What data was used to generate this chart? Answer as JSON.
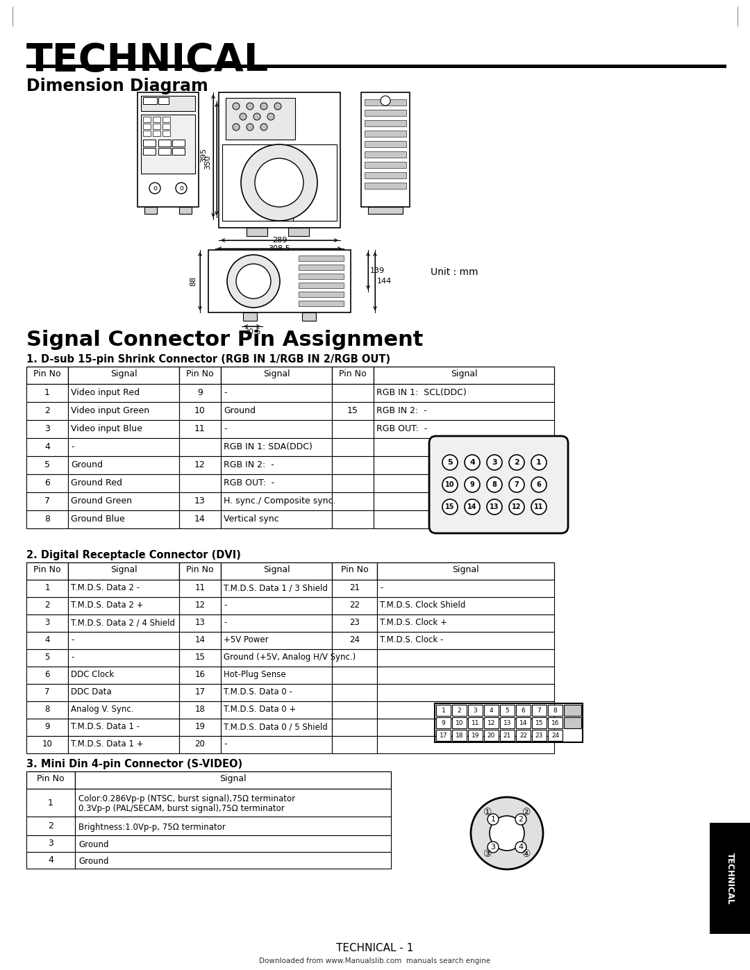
{
  "title": "TECHNICAL",
  "section1": "Dimension Diagram",
  "section2": "Signal Connector Pin Assignment",
  "subsection1": "1. D-sub 15-pin Shrink Connector (RGB IN 1/RGB IN 2/RGB OUT)",
  "subsection2": "2. Digital Receptacle Connector (DVI)",
  "subsection3": "3. Mini Din 4-pin Connector (S-VIDEO)",
  "unit_label": "Unit : mm",
  "footer": "TECHNICAL - 1",
  "footer2": "Downloaded from www.Manualslib.com  manuals search engine",
  "rgb_table_headers": [
    "Pin No",
    "Signal",
    "Pin No",
    "Signal",
    "Pin No",
    "Signal"
  ],
  "rgb_table_rows": [
    [
      "1",
      "Video input Red",
      "9",
      "-",
      "",
      "RGB IN 1:  SCL(DDC)"
    ],
    [
      "2",
      "Video input Green",
      "10",
      "Ground",
      "15",
      "RGB IN 2:  -"
    ],
    [
      "3",
      "Video input Blue",
      "11",
      "-",
      "",
      "RGB OUT:  -"
    ],
    [
      "4",
      "-",
      "",
      "RGB IN 1: SDA(DDC)",
      "",
      ""
    ],
    [
      "5",
      "Ground",
      "12",
      "RGB IN 2:  -",
      "",
      ""
    ],
    [
      "6",
      "Ground Red",
      "",
      "RGB OUT:  -",
      "",
      ""
    ],
    [
      "7",
      "Ground Green",
      "13",
      "H. sync./ Composite sync.",
      "",
      ""
    ],
    [
      "8",
      "Ground Blue",
      "14",
      "Vertical sync",
      "",
      ""
    ]
  ],
  "dvi_table_headers": [
    "Pin No",
    "Signal",
    "Pin No",
    "Signal",
    "Pin No",
    "Signal"
  ],
  "dvi_table_rows": [
    [
      "1",
      "T.M.D.S. Data 2 -",
      "11",
      "T.M.D.S. Data 1 / 3 Shield",
      "21",
      "-"
    ],
    [
      "2",
      "T.M.D.S. Data 2 +",
      "12",
      "-",
      "22",
      "T.M.D.S. Clock Shield"
    ],
    [
      "3",
      "T.M.D.S. Data 2 / 4 Shield",
      "13",
      "-",
      "23",
      "T.M.D.S. Clock +"
    ],
    [
      "4",
      "-",
      "14",
      "+5V Power",
      "24",
      "T.M.D.S. Clock -"
    ],
    [
      "5",
      "-",
      "15",
      "Ground (+5V, Analog H/V Sync.)",
      "",
      ""
    ],
    [
      "6",
      "DDC Clock",
      "16",
      "Hot-Plug Sense",
      "",
      ""
    ],
    [
      "7",
      "DDC Data",
      "17",
      "T.M.D.S. Data 0 -",
      "",
      ""
    ],
    [
      "8",
      "Analog V. Sync.",
      "18",
      "T.M.D.S. Data 0 +",
      "",
      ""
    ],
    [
      "9",
      "T.M.D.S. Data 1 -",
      "19",
      "T.M.D.S. Data 0 / 5 Shield",
      "",
      ""
    ],
    [
      "10",
      "T.M.D.S. Data 1 +",
      "20",
      "-",
      "",
      ""
    ]
  ],
  "svideo_table_headers": [
    "Pin No",
    "Signal"
  ],
  "svideo_table_rows": [
    [
      "1",
      "Color:0.286Vp-p (NTSC, burst signal),75Ω terminator\n0.3Vp-p (PAL/SECAM, burst signal),75Ω terminator"
    ],
    [
      "2",
      "Brightness:1.0Vp-p, 75Ω terminator"
    ],
    [
      "3",
      "Ground"
    ],
    [
      "4",
      "Ground"
    ]
  ],
  "bg_color": "#ffffff"
}
